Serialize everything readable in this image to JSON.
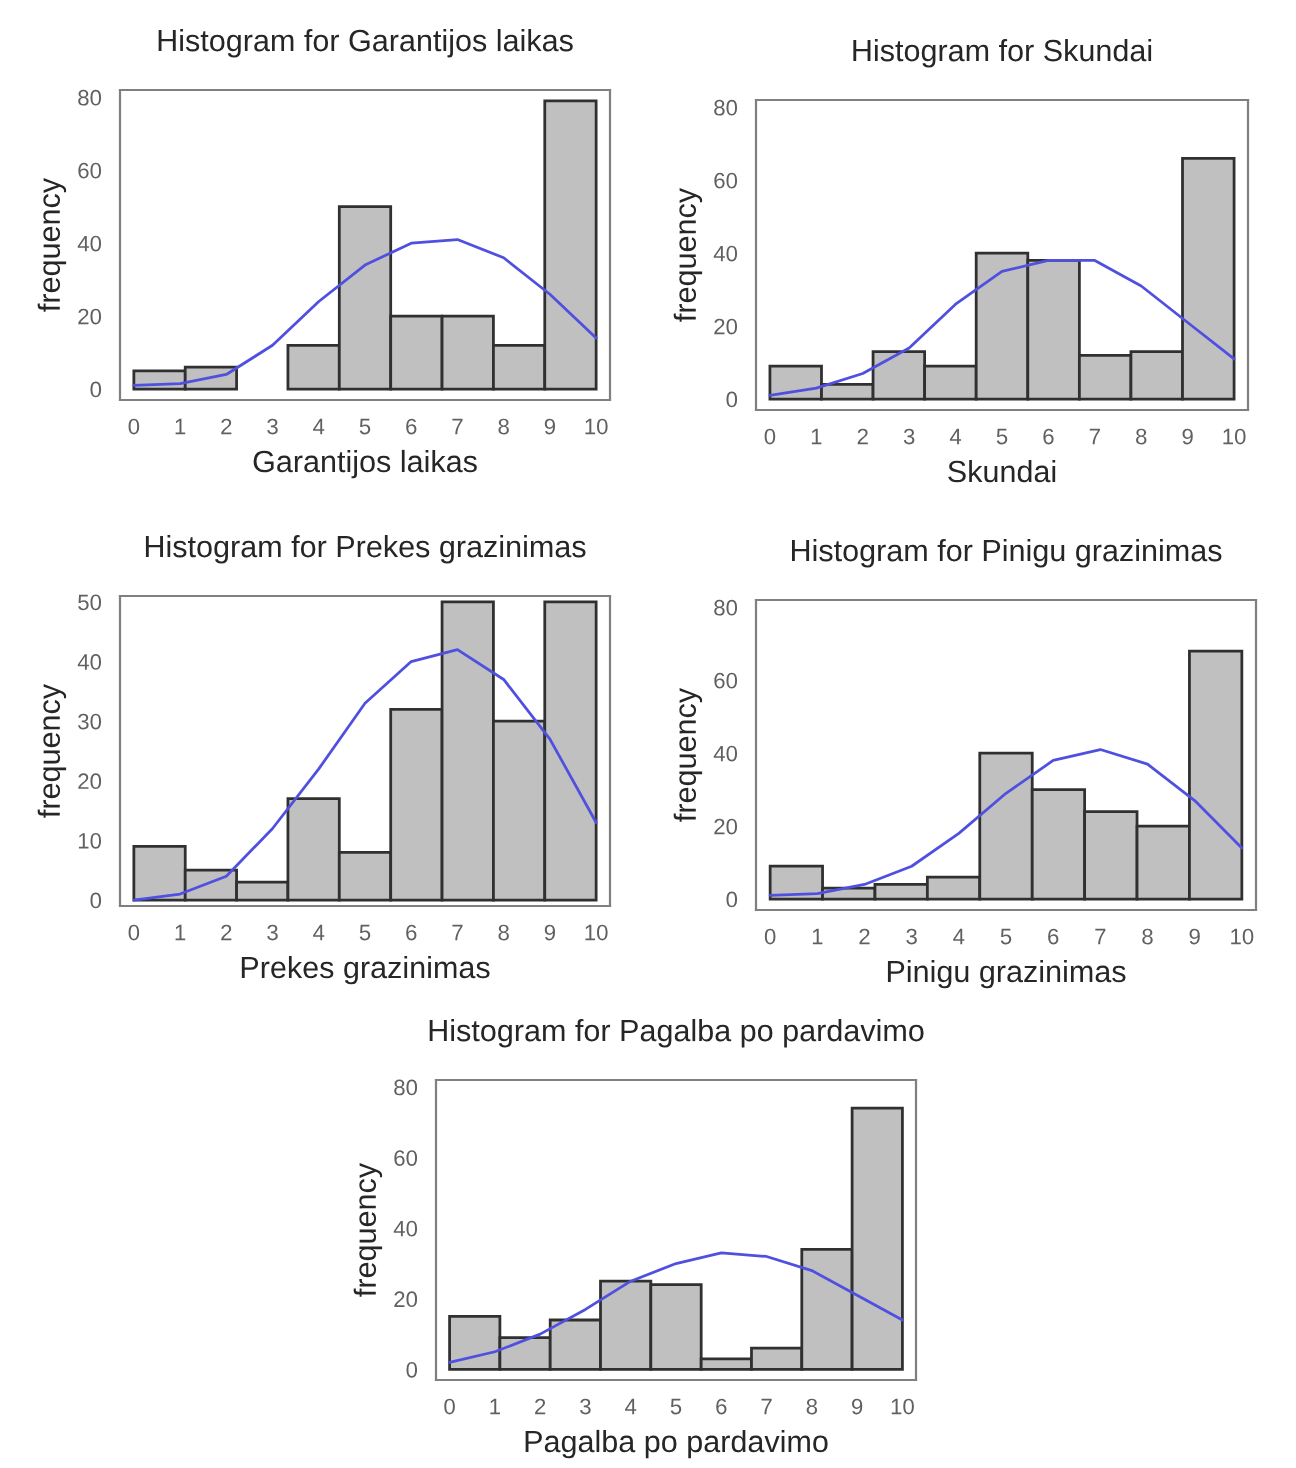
{
  "chart_data": [
    {
      "type": "histogram",
      "title": "Histogram for Garantijos laikas",
      "xlabel": "Garantijos laikas",
      "ylabel": "frequency",
      "bins": [
        0,
        1.111,
        2.222,
        3.333,
        4.444,
        5.556,
        6.667,
        7.778,
        8.889,
        10
      ],
      "values": [
        5,
        6,
        0,
        12,
        50,
        20,
        20,
        12,
        79
      ],
      "color": "#c0c0c0",
      "xlim": [
        -0.3,
        10.3
      ],
      "ylim": [
        -3,
        82
      ],
      "xticks": [
        0,
        1,
        2,
        3,
        4,
        5,
        6,
        7,
        8,
        9,
        10
      ],
      "yticks": [
        0,
        20,
        40,
        60,
        80
      ],
      "grid": false,
      "series": [
        {
          "type": "line",
          "color": "#5050e0",
          "x": [
            0,
            1,
            2,
            3,
            4,
            5,
            6,
            7,
            8,
            9,
            10
          ],
          "values": [
            1,
            1.5,
            4,
            12,
            24,
            34,
            40,
            41,
            36,
            26,
            14
          ]
        }
      ]
    },
    {
      "type": "histogram",
      "title": "Histogram for Skundai",
      "xlabel": "Skundai",
      "ylabel": "frequency",
      "bins": [
        0,
        1.111,
        2.222,
        3.333,
        4.444,
        5.556,
        6.667,
        7.778,
        8.889,
        10
      ],
      "values": [
        9,
        4,
        13,
        9,
        40,
        38,
        12,
        13,
        66
      ],
      "color": "#c0c0c0",
      "xlim": [
        -0.3,
        10.3
      ],
      "ylim": [
        -3,
        82
      ],
      "xticks": [
        0,
        1,
        2,
        3,
        4,
        5,
        6,
        7,
        8,
        9,
        10
      ],
      "yticks": [
        0,
        20,
        40,
        60,
        80
      ],
      "grid": false,
      "series": [
        {
          "type": "line",
          "color": "#5050e0",
          "x": [
            0,
            1,
            2,
            3,
            4,
            5,
            6,
            7,
            8,
            9,
            10
          ],
          "values": [
            1,
            3,
            7,
            14,
            26,
            35,
            38,
            38,
            31,
            21,
            11
          ]
        }
      ]
    },
    {
      "type": "histogram",
      "title": "Histogram for Prekes grazinimas",
      "xlabel": "Prekes grazinimas",
      "ylabel": "frequency",
      "bins": [
        0,
        1.111,
        2.222,
        3.333,
        4.444,
        5.556,
        6.667,
        7.778,
        8.889,
        10
      ],
      "values": [
        9,
        5,
        3,
        17,
        8,
        32,
        50,
        30,
        50
      ],
      "color": "#c0c0c0",
      "xlim": [
        -0.3,
        10.3
      ],
      "ylim": [
        -1,
        51
      ],
      "xticks": [
        0,
        1,
        2,
        3,
        4,
        5,
        6,
        7,
        8,
        9,
        10
      ],
      "yticks": [
        0,
        10,
        20,
        30,
        40,
        50
      ],
      "grid": false,
      "series": [
        {
          "type": "line",
          "color": "#5050e0",
          "x": [
            0,
            1,
            2,
            3,
            4,
            5,
            6,
            7,
            8,
            9,
            10
          ],
          "values": [
            0,
            1,
            4,
            12,
            22,
            33,
            40,
            42,
            37,
            27,
            13
          ]
        }
      ]
    },
    {
      "type": "histogram",
      "title": "Histogram for Pinigu grazinimas",
      "xlabel": "Pinigu grazinimas",
      "ylabel": "frequency",
      "bins": [
        0,
        1.111,
        2.222,
        3.333,
        4.444,
        5.556,
        6.667,
        7.778,
        8.889,
        10
      ],
      "values": [
        9,
        3,
        4,
        6,
        40,
        30,
        24,
        20,
        68
      ],
      "color": "#c0c0c0",
      "xlim": [
        -0.3,
        10.3
      ],
      "ylim": [
        -3,
        82
      ],
      "xticks": [
        0,
        1,
        2,
        3,
        4,
        5,
        6,
        7,
        8,
        9,
        10
      ],
      "yticks": [
        0,
        20,
        40,
        60,
        80
      ],
      "grid": false,
      "series": [
        {
          "type": "line",
          "color": "#5050e0",
          "x": [
            0,
            1,
            2,
            3,
            4,
            5,
            6,
            7,
            8,
            9,
            10
          ],
          "values": [
            1,
            1.5,
            4,
            9,
            18,
            29,
            38,
            41,
            37,
            27,
            14
          ]
        }
      ]
    },
    {
      "type": "histogram",
      "title": "Histogram for Pagalba po pardavimo",
      "xlabel": "Pagalba po pardavimo",
      "ylabel": "frequency",
      "bins": [
        0,
        1.111,
        2.222,
        3.333,
        4.444,
        5.556,
        6.667,
        7.778,
        8.889,
        10
      ],
      "values": [
        15,
        9,
        14,
        25,
        24,
        3,
        6,
        34,
        74
      ],
      "color": "#c0c0c0",
      "xlim": [
        -0.3,
        10.3
      ],
      "ylim": [
        -3,
        82
      ],
      "xticks": [
        0,
        1,
        2,
        3,
        4,
        5,
        6,
        7,
        8,
        9,
        10
      ],
      "yticks": [
        0,
        20,
        40,
        60,
        80
      ],
      "grid": false,
      "series": [
        {
          "type": "line",
          "color": "#5050e0",
          "x": [
            0,
            1,
            2,
            3,
            4,
            5,
            6,
            7,
            8,
            9,
            10
          ],
          "values": [
            2,
            5,
            10,
            17,
            25,
            30,
            33,
            32,
            28,
            21,
            14
          ]
        }
      ]
    }
  ]
}
